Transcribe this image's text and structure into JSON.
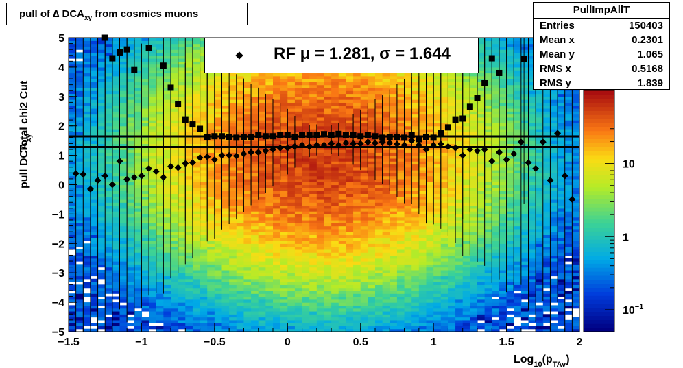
{
  "title_html": {
    "pre": "pull of ",
    "delta": "∆",
    "mid": " DCA",
    "sub": "xy",
    "post": "  from cosmics muons"
  },
  "stats": {
    "name": "PullImpAllT",
    "rows": [
      {
        "label": "Entries",
        "value": "150403"
      },
      {
        "label": "Mean x",
        "value": "0.2301"
      },
      {
        "label": "Mean y",
        "value": "1.065"
      },
      {
        "label": "RMS x",
        "value": "0.5168"
      },
      {
        "label": "RMS y",
        "value": "1.839"
      }
    ]
  },
  "legend": {
    "text": "RF μ =  1.281, σ =   1.644"
  },
  "axes": {
    "ylabel_line1": "Total chi2 Cut",
    "ylabel_line2_main": "pull DCA",
    "ylabel_line2_sub": "xy",
    "xlabel_main": "Log",
    "xlabel_sub1": "10",
    "xlabel_mid": "(p",
    "xlabel_sub2": "TAv",
    "xlabel_end": ")"
  },
  "chart_data": {
    "type": "heatmap",
    "xlim": [
      -1.5,
      2
    ],
    "ylim": [
      -5,
      5
    ],
    "xticks": [
      "−1.5",
      "−1",
      "−0.5",
      "0",
      "0.5",
      "1",
      "1.5",
      "2"
    ],
    "yticks": [
      "5",
      "4",
      "3",
      "2",
      "1",
      "0",
      "−1",
      "−2",
      "−3",
      "−4",
      "−5"
    ],
    "zscale": "log",
    "zlim": [
      0.05,
      100
    ],
    "zticks": [
      "10",
      "1",
      "10^-1"
    ],
    "fit_lines": {
      "sigma": 1.644,
      "mu": 1.281
    },
    "series": [
      {
        "marker": "square",
        "points": [
          [
            -1.25,
            5.0
          ],
          [
            -1.2,
            4.3
          ],
          [
            -1.15,
            4.5
          ],
          [
            -1.1,
            4.6
          ],
          [
            -1.05,
            3.9
          ],
          [
            -0.95,
            4.65
          ],
          [
            -0.85,
            4.05
          ],
          [
            -0.8,
            3.3
          ],
          [
            -0.75,
            2.75
          ],
          [
            -0.7,
            2.2
          ],
          [
            -0.65,
            2.05
          ],
          [
            -0.6,
            1.9
          ],
          [
            -0.55,
            1.62
          ],
          [
            -0.5,
            1.65
          ],
          [
            -0.45,
            1.65
          ],
          [
            -0.4,
            1.62
          ],
          [
            -0.35,
            1.6
          ],
          [
            -0.3,
            1.63
          ],
          [
            -0.25,
            1.62
          ],
          [
            -0.2,
            1.68
          ],
          [
            -0.15,
            1.65
          ],
          [
            -0.1,
            1.65
          ],
          [
            -0.05,
            1.68
          ],
          [
            0.0,
            1.68
          ],
          [
            0.05,
            1.62
          ],
          [
            0.1,
            1.7
          ],
          [
            0.15,
            1.68
          ],
          [
            0.2,
            1.7
          ],
          [
            0.25,
            1.72
          ],
          [
            0.3,
            1.68
          ],
          [
            0.35,
            1.73
          ],
          [
            0.4,
            1.7
          ],
          [
            0.45,
            1.68
          ],
          [
            0.5,
            1.65
          ],
          [
            0.55,
            1.68
          ],
          [
            0.6,
            1.65
          ],
          [
            0.65,
            1.6
          ],
          [
            0.7,
            1.62
          ],
          [
            0.75,
            1.62
          ],
          [
            0.8,
            1.6
          ],
          [
            0.85,
            1.68
          ],
          [
            0.9,
            1.55
          ],
          [
            0.95,
            1.62
          ],
          [
            1.0,
            1.6
          ],
          [
            1.05,
            1.75
          ],
          [
            1.1,
            1.95
          ],
          [
            1.15,
            2.2
          ],
          [
            1.2,
            2.25
          ],
          [
            1.25,
            2.65
          ],
          [
            1.3,
            2.95
          ],
          [
            1.35,
            3.45
          ],
          [
            1.4,
            4.3
          ],
          [
            1.45,
            3.8
          ],
          [
            1.62,
            4.28
          ]
        ]
      },
      {
        "marker": "diamond",
        "points": [
          [
            -1.45,
            0.38
          ],
          [
            -1.4,
            0.35
          ],
          [
            -1.35,
            -0.15
          ],
          [
            -1.3,
            0.15
          ],
          [
            -1.25,
            0.3
          ],
          [
            -1.2,
            0.0
          ],
          [
            -1.15,
            0.8
          ],
          [
            -1.1,
            0.18
          ],
          [
            -1.05,
            0.25
          ],
          [
            -1.0,
            0.3
          ],
          [
            -0.95,
            0.55
          ],
          [
            -0.9,
            0.45
          ],
          [
            -0.85,
            0.25
          ],
          [
            -0.8,
            0.62
          ],
          [
            -0.75,
            0.58
          ],
          [
            -0.7,
            0.72
          ],
          [
            -0.65,
            0.75
          ],
          [
            -0.6,
            0.92
          ],
          [
            -0.55,
            0.95
          ],
          [
            -0.5,
            0.85
          ],
          [
            -0.45,
            1.0
          ],
          [
            -0.4,
            1.0
          ],
          [
            -0.35,
            0.98
          ],
          [
            -0.3,
            1.05
          ],
          [
            -0.25,
            1.1
          ],
          [
            -0.2,
            1.1
          ],
          [
            -0.15,
            1.15
          ],
          [
            -0.1,
            1.2
          ],
          [
            -0.05,
            1.25
          ],
          [
            0.0,
            1.25
          ],
          [
            0.05,
            1.3
          ],
          [
            0.1,
            1.35
          ],
          [
            0.15,
            1.3
          ],
          [
            0.2,
            1.35
          ],
          [
            0.25,
            1.35
          ],
          [
            0.3,
            1.4
          ],
          [
            0.35,
            1.35
          ],
          [
            0.4,
            1.42
          ],
          [
            0.45,
            1.4
          ],
          [
            0.5,
            1.4
          ],
          [
            0.55,
            1.45
          ],
          [
            0.6,
            1.42
          ],
          [
            0.65,
            1.45
          ],
          [
            0.7,
            1.42
          ],
          [
            0.75,
            1.38
          ],
          [
            0.8,
            1.35
          ],
          [
            0.85,
            1.5
          ],
          [
            0.9,
            1.35
          ],
          [
            0.95,
            1.2
          ],
          [
            1.0,
            1.35
          ],
          [
            1.05,
            1.38
          ],
          [
            1.1,
            1.3
          ],
          [
            1.15,
            1.25
          ],
          [
            1.2,
            1.0
          ],
          [
            1.25,
            1.2
          ],
          [
            1.3,
            1.15
          ],
          [
            1.35,
            1.2
          ],
          [
            1.4,
            0.8
          ],
          [
            1.45,
            1.1
          ],
          [
            1.5,
            0.85
          ],
          [
            1.55,
            1.05
          ],
          [
            1.6,
            1.45
          ],
          [
            1.65,
            0.75
          ],
          [
            1.7,
            0.55
          ],
          [
            1.75,
            1.45
          ],
          [
            1.8,
            0.15
          ],
          [
            1.85,
            1.75
          ],
          [
            1.9,
            0.3
          ],
          [
            1.95,
            -0.5
          ]
        ]
      }
    ]
  }
}
